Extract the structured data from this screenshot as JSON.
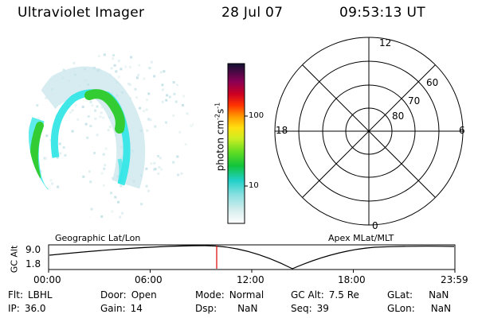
{
  "header": {
    "title": "Ultraviolet Imager",
    "date": "28 Jul 07",
    "time": "09:53:13 UT"
  },
  "colors": {
    "aurora_cyan": "#35e6e6",
    "aurora_green": "#33cc33",
    "aurora_faint": "#c8e6ec",
    "polar_lines": "#000000",
    "current_time_marker": "#dd0000"
  },
  "colorbar": {
    "scale": "log",
    "unit_label": "photon cm",
    "unit_exp1": "-2",
    "unit_mid": "s",
    "unit_exp2": "-1",
    "ticks": [
      "100",
      "10"
    ]
  },
  "polar_plot": {
    "mlt_labels": {
      "top": "12",
      "bottom": "0",
      "left": "18",
      "right": "6"
    },
    "lat_labels": [
      "80",
      "70",
      "60"
    ]
  },
  "timeline": {
    "left_label": "Geographic Lat/Lon",
    "right_label": "Apex MLat/MLT",
    "axis_label": "GC Alt",
    "y_ticks": [
      "9.0",
      "1.8"
    ],
    "x_ticks": [
      "00:00",
      "06:00",
      "12:00",
      "18:00",
      "23:59"
    ],
    "current_time": "09:53:13"
  },
  "info": {
    "flt": {
      "label": "Flt:",
      "value": "LBHL"
    },
    "ip": {
      "label": "IP:",
      "value": "36.0"
    },
    "door": {
      "label": "Door:",
      "value": "Open"
    },
    "gain": {
      "label": "Gain:",
      "value": "14"
    },
    "mode": {
      "label": "Mode:",
      "value": "Normal"
    },
    "dsp": {
      "label": "Dsp:",
      "value": "NaN"
    },
    "gc_alt": {
      "label": "GC Alt:",
      "value": "7.5 Re"
    },
    "seq": {
      "label": "Seq:",
      "value": "39"
    },
    "glat": {
      "label": "GLat:",
      "value": "NaN"
    },
    "glon": {
      "label": "GLon:",
      "value": "NaN"
    }
  }
}
